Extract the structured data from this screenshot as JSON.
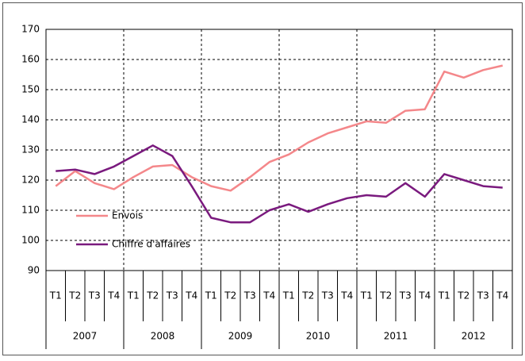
{
  "chart_data": {
    "type": "line",
    "categories": [
      "T1",
      "T2",
      "T3",
      "T4",
      "T1",
      "T2",
      "T3",
      "T4",
      "T1",
      "T2",
      "T3",
      "T4",
      "T1",
      "T2",
      "T3",
      "T4",
      "T1",
      "T2",
      "T3",
      "T4",
      "T1",
      "T2",
      "T3",
      "T4"
    ],
    "year_labels": [
      "2007",
      "2008",
      "2009",
      "2010",
      "2011",
      "2012"
    ],
    "series": [
      {
        "name": "Envois",
        "color": "#f4878a",
        "values": [
          118,
          123,
          119,
          117,
          121,
          124.5,
          125,
          121,
          118,
          116.5,
          121,
          126,
          128.5,
          132.5,
          135.5,
          137.5,
          139.5,
          139,
          143,
          143.5,
          156,
          154,
          156.5,
          158
        ]
      },
      {
        "name": "Chiffre d'affaires",
        "color": "#7a1a7e",
        "values": [
          123,
          123.5,
          122,
          124.5,
          128,
          131.5,
          128,
          118,
          107.5,
          106,
          106,
          110,
          112,
          109.5,
          112,
          114,
          115,
          114.5,
          119,
          114.5,
          122,
          120,
          118,
          117.5
        ]
      }
    ],
    "ylim": [
      90,
      170
    ],
    "yticks": [
      90,
      100,
      110,
      120,
      130,
      140,
      150,
      160,
      170
    ],
    "grid": true,
    "legend": "left"
  }
}
